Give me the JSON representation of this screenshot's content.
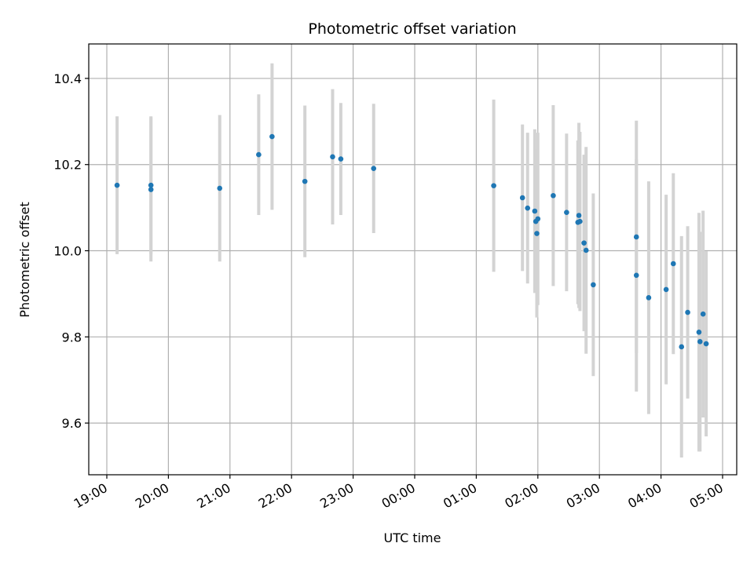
{
  "chart_data": {
    "type": "scatter",
    "title": "Photometric offset variation",
    "xlabel": "UTC time",
    "ylabel": "Photometric offset",
    "xlim": [
      "19:00",
      "05:00"
    ],
    "ylim": [
      9.48,
      10.48
    ],
    "grid": true,
    "x_ticks": [
      "19:00",
      "20:00",
      "21:00",
      "22:00",
      "23:00",
      "00:00",
      "01:00",
      "02:00",
      "03:00",
      "04:00",
      "05:00"
    ],
    "y_ticks": [
      9.6,
      9.8,
      10.0,
      10.2,
      10.4
    ],
    "y_tick_labels": [
      "9.6",
      "9.8",
      "10.0",
      "10.2",
      "10.4"
    ],
    "colors": {
      "point": "#1f77b4",
      "errorbar": "#d3d3d3",
      "grid": "#b0b0b0"
    },
    "points": [
      {
        "t": "19:10",
        "y": 10.152,
        "err": 0.16
      },
      {
        "t": "19:43",
        "y": 10.152,
        "err": 0.16
      },
      {
        "t": "19:43",
        "y": 10.142,
        "err": 0.167
      },
      {
        "t": "20:50",
        "y": 10.145,
        "err": 0.17
      },
      {
        "t": "21:28",
        "y": 10.223,
        "err": 0.14
      },
      {
        "t": "21:41",
        "y": 10.265,
        "err": 0.17
      },
      {
        "t": "22:13",
        "y": 10.161,
        "err": 0.176
      },
      {
        "t": "22:40",
        "y": 10.218,
        "err": 0.157
      },
      {
        "t": "22:48",
        "y": 10.213,
        "err": 0.13
      },
      {
        "t": "23:20",
        "y": 10.191,
        "err": 0.15
      },
      {
        "t": "01:17",
        "y": 10.151,
        "err": 0.2
      },
      {
        "t": "01:45",
        "y": 10.123,
        "err": 0.17
      },
      {
        "t": "01:50",
        "y": 10.099,
        "err": 0.175
      },
      {
        "t": "01:57",
        "y": 10.092,
        "err": 0.19
      },
      {
        "t": "01:58",
        "y": 10.068,
        "err": 0.16
      },
      {
        "t": "01:59",
        "y": 10.04,
        "err": 0.195
      },
      {
        "t": "02:00",
        "y": 10.074,
        "err": 0.2
      },
      {
        "t": "02:15",
        "y": 10.128,
        "err": 0.21
      },
      {
        "t": "02:28",
        "y": 10.089,
        "err": 0.183
      },
      {
        "t": "02:39",
        "y": 10.066,
        "err": 0.19
      },
      {
        "t": "02:40",
        "y": 10.082,
        "err": 0.215
      },
      {
        "t": "02:41",
        "y": 10.068,
        "err": 0.208
      },
      {
        "t": "02:45",
        "y": 10.018,
        "err": 0.205
      },
      {
        "t": "02:47",
        "y": 10.001,
        "err": 0.24
      },
      {
        "t": "02:54",
        "y": 9.921,
        "err": 0.212
      },
      {
        "t": "03:36",
        "y": 10.032,
        "err": 0.27
      },
      {
        "t": "03:36",
        "y": 9.943,
        "err": 0.27
      },
      {
        "t": "03:48",
        "y": 9.891,
        "err": 0.27
      },
      {
        "t": "04:05",
        "y": 9.91,
        "err": 0.22
      },
      {
        "t": "04:12",
        "y": 9.97,
        "err": 0.21
      },
      {
        "t": "04:20",
        "y": 9.777,
        "err": 0.257
      },
      {
        "t": "04:26",
        "y": 9.857,
        "err": 0.2
      },
      {
        "t": "04:37",
        "y": 9.811,
        "err": 0.277
      },
      {
        "t": "04:38",
        "y": 9.789,
        "err": 0.255
      },
      {
        "t": "04:41",
        "y": 9.853,
        "err": 0.24
      },
      {
        "t": "04:44",
        "y": 9.784,
        "err": 0.215
      }
    ]
  }
}
